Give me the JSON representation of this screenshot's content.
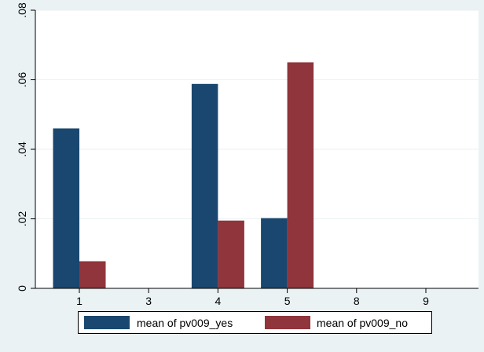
{
  "chart_data": {
    "type": "bar",
    "title": "",
    "xlabel": "",
    "ylabel": "",
    "categories": [
      "1",
      "3",
      "4",
      "5",
      "8",
      "9"
    ],
    "series": [
      {
        "name": "mean of pv009_yes",
        "values": [
          0.046,
          0,
          0.0588,
          0.0202,
          0,
          0
        ]
      },
      {
        "name": "mean of pv009_no",
        "values": [
          0.0078,
          0,
          0.0195,
          0.065,
          0,
          0
        ]
      }
    ],
    "ylim": [
      0,
      0.08
    ],
    "yticks": [
      0,
      0.02,
      0.04,
      0.06,
      0.08
    ],
    "ytick_labels": [
      "0",
      ".02",
      ".04",
      ".06",
      ".08"
    ],
    "grid": true,
    "legend_position": "bottom",
    "colors": {
      "background": "#eaf2f3",
      "plot_background": "#ffffff",
      "series": [
        "#1a476f",
        "#90353b"
      ],
      "grid": "#eaf2f3"
    }
  }
}
